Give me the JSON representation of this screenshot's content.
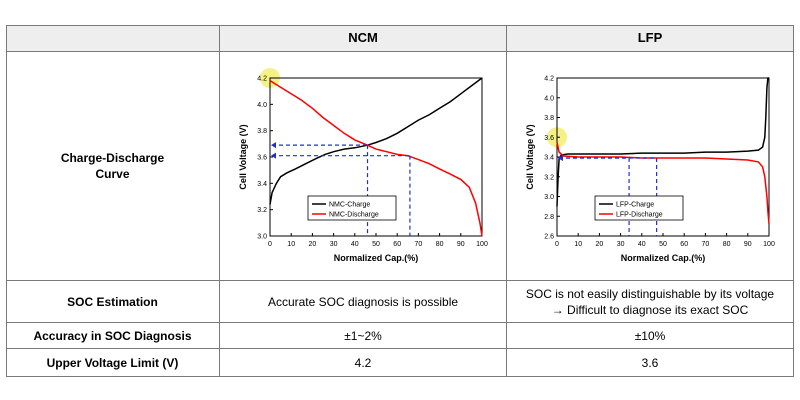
{
  "table": {
    "col_ncm": "NCM",
    "col_lfp": "LFP",
    "row_curve_label_1": "Charge-Discharge",
    "row_curve_label_2": "Curve",
    "row_soc_label": "SOC Estimation",
    "soc_ncm": "Accurate SOC diagnosis is possible",
    "soc_lfp_1": "SOC is not easily distinguishable by its voltage",
    "soc_lfp_2": "→ Difficult to diagnose its exact SOC",
    "row_accuracy_label": "Accuracy in SOC Diagnosis",
    "accuracy_ncm": "±1~2%",
    "accuracy_lfp": "±10%",
    "row_voltage_label": "Upper Voltage Limit (V)",
    "voltage_ncm": "4.2",
    "voltage_lfp": "3.6"
  },
  "colors": {
    "charge": "#000000",
    "discharge": "#ff0000",
    "guide": "#1f2fd6",
    "highlight": "#f5f07a"
  },
  "chart_data": [
    {
      "type": "line",
      "xlabel": "Normalized Cap.(%)",
      "ylabel": "Cell Voltage (V)",
      "xlim": [
        0,
        100
      ],
      "ylim": [
        3.0,
        4.2
      ],
      "xticks": [
        "0",
        "10",
        "20",
        "30",
        "40",
        "50",
        "60",
        "70",
        "80",
        "90",
        "100"
      ],
      "yticks": [
        "3.0",
        "3.2",
        "3.4",
        "3.6",
        "3.8",
        "4.0",
        "4.2"
      ],
      "legend": [
        "NMC-Charge",
        "NMC-Discharge"
      ],
      "legend_position": "bottom-left",
      "highlight": {
        "x": 0,
        "y": 4.2
      },
      "guides": [
        {
          "y": 3.69,
          "x": 46
        },
        {
          "y": 3.61,
          "x": 66
        }
      ],
      "series": [
        {
          "name": "NMC-Charge",
          "color_key": "charge",
          "x": [
            0,
            1,
            3,
            5,
            8,
            12,
            17,
            22,
            26,
            30,
            35,
            40,
            46,
            50,
            55,
            60,
            65,
            70,
            75,
            80,
            85,
            90,
            95,
            100
          ],
          "y": [
            3.24,
            3.33,
            3.4,
            3.45,
            3.48,
            3.51,
            3.55,
            3.59,
            3.62,
            3.64,
            3.66,
            3.67,
            3.69,
            3.71,
            3.74,
            3.78,
            3.83,
            3.88,
            3.92,
            3.97,
            4.02,
            4.08,
            4.14,
            4.2
          ]
        },
        {
          "name": "NMC-Discharge",
          "color_key": "discharge",
          "x": [
            0,
            5,
            10,
            15,
            20,
            25,
            30,
            35,
            40,
            46,
            50,
            55,
            60,
            65,
            70,
            75,
            80,
            85,
            90,
            94,
            97,
            99,
            100
          ],
          "y": [
            4.18,
            4.13,
            4.08,
            4.03,
            3.97,
            3.9,
            3.84,
            3.78,
            3.73,
            3.69,
            3.66,
            3.64,
            3.62,
            3.61,
            3.58,
            3.55,
            3.51,
            3.47,
            3.43,
            3.37,
            3.25,
            3.1,
            3.0
          ]
        }
      ]
    },
    {
      "type": "line",
      "xlabel": "Normalized Cap.(%)",
      "ylabel": "Cell Voltage (V)",
      "xlim": [
        0,
        100
      ],
      "ylim": [
        2.6,
        4.2
      ],
      "xticks": [
        "0",
        "10",
        "20",
        "30",
        "40",
        "50",
        "60",
        "70",
        "80",
        "90",
        "100"
      ],
      "yticks": [
        "2.6",
        "2.8",
        "3.0",
        "3.2",
        "3.4",
        "3.6",
        "3.8",
        "4.0",
        "4.2"
      ],
      "legend": [
        "LFP-Charge",
        "LFP-Discharge"
      ],
      "legend_position": "bottom-left",
      "highlight": {
        "x": 0,
        "y": 3.6
      },
      "guides": [
        {
          "y": 3.39,
          "x": 34
        },
        {
          "y": 3.39,
          "x": 47
        }
      ],
      "series": [
        {
          "name": "LFP-Charge",
          "color_key": "charge",
          "x": [
            0,
            0.5,
            1,
            2,
            5,
            10,
            20,
            30,
            40,
            50,
            60,
            70,
            80,
            90,
            95,
            97,
            98,
            98.5,
            99,
            99.5,
            100
          ],
          "y": [
            2.9,
            3.2,
            3.38,
            3.42,
            3.43,
            3.43,
            3.43,
            3.43,
            3.44,
            3.44,
            3.44,
            3.45,
            3.45,
            3.46,
            3.47,
            3.5,
            3.6,
            3.8,
            4.1,
            4.2,
            4.2
          ]
        },
        {
          "name": "LFP-Discharge",
          "color_key": "discharge",
          "x": [
            0,
            1,
            3,
            10,
            20,
            30,
            40,
            50,
            60,
            70,
            80,
            90,
            95,
            97,
            98,
            99,
            99.5,
            100
          ],
          "y": [
            3.55,
            3.45,
            3.41,
            3.4,
            3.4,
            3.4,
            3.39,
            3.39,
            3.39,
            3.39,
            3.38,
            3.37,
            3.35,
            3.3,
            3.2,
            3.0,
            2.85,
            2.72
          ]
        }
      ]
    }
  ]
}
